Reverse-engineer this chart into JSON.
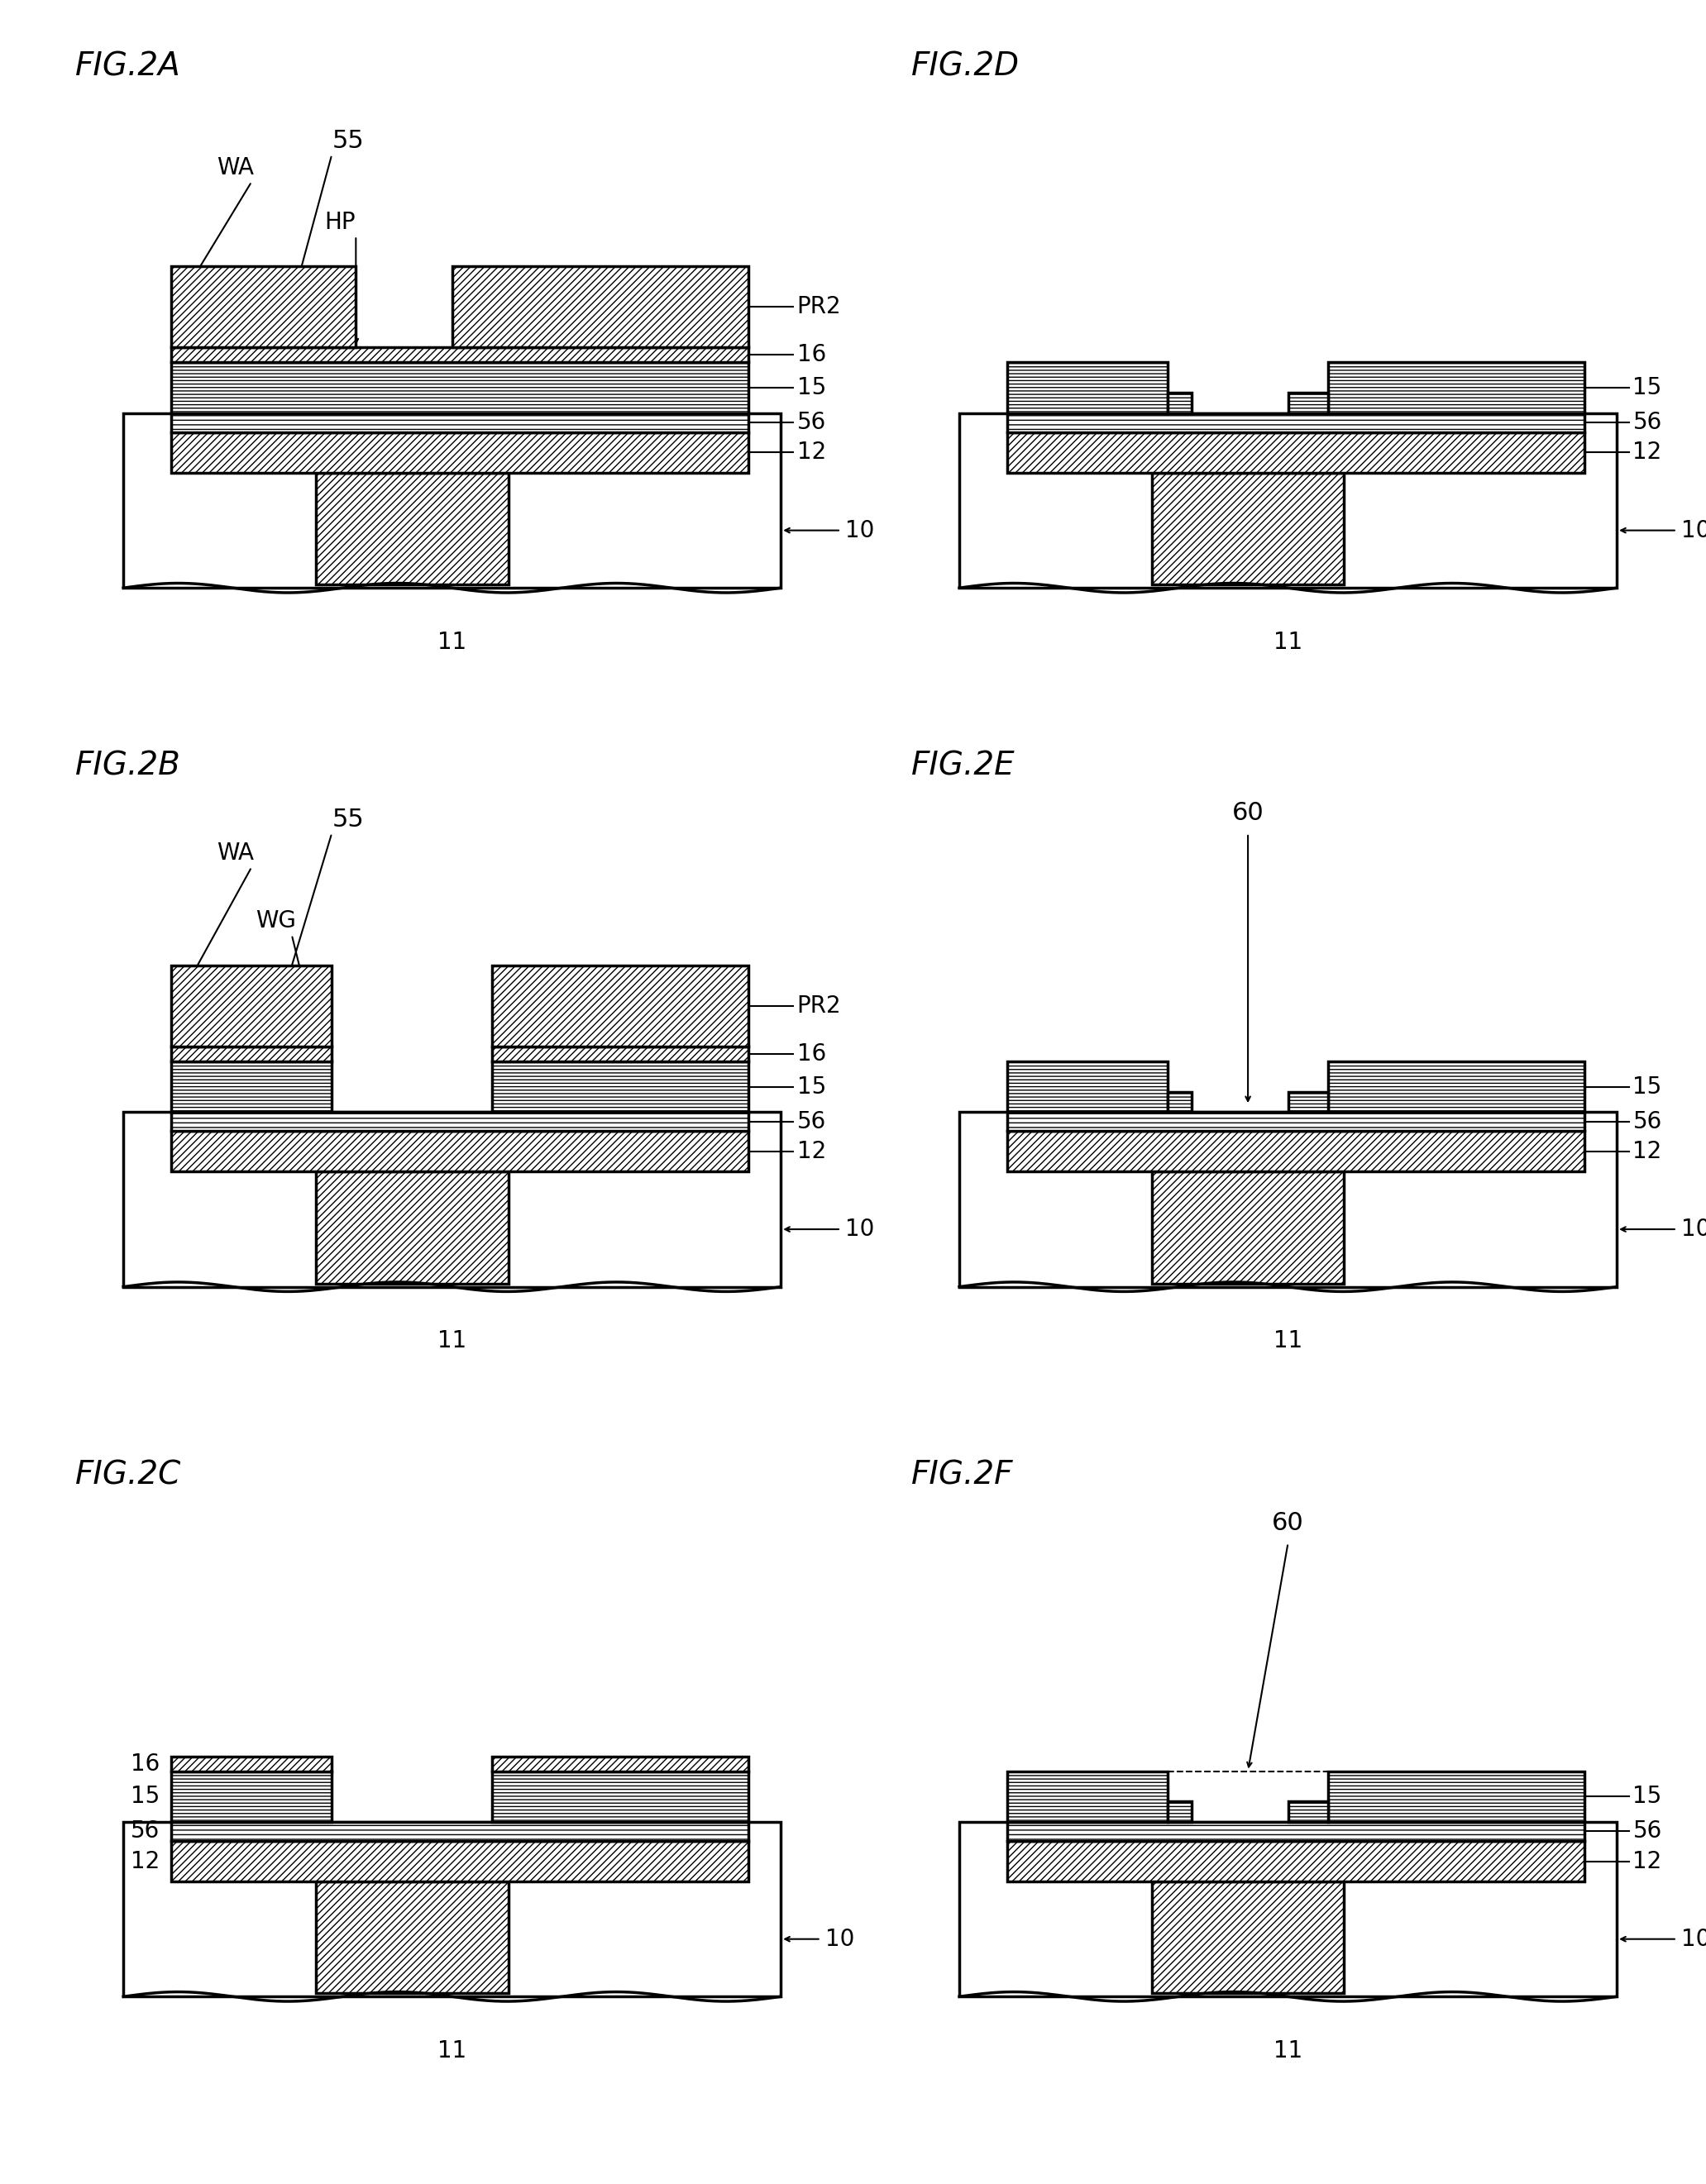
{
  "bg_color": "#ffffff",
  "line_color": "#000000",
  "fig_labels": [
    "FIG.2A",
    "FIG.2B",
    "FIG.2C",
    "FIG.2D",
    "FIG.2E",
    "FIG.2F"
  ],
  "font_size_title": 28,
  "font_size_label": 20,
  "lw": 2.5,
  "lw_thin": 1.5
}
